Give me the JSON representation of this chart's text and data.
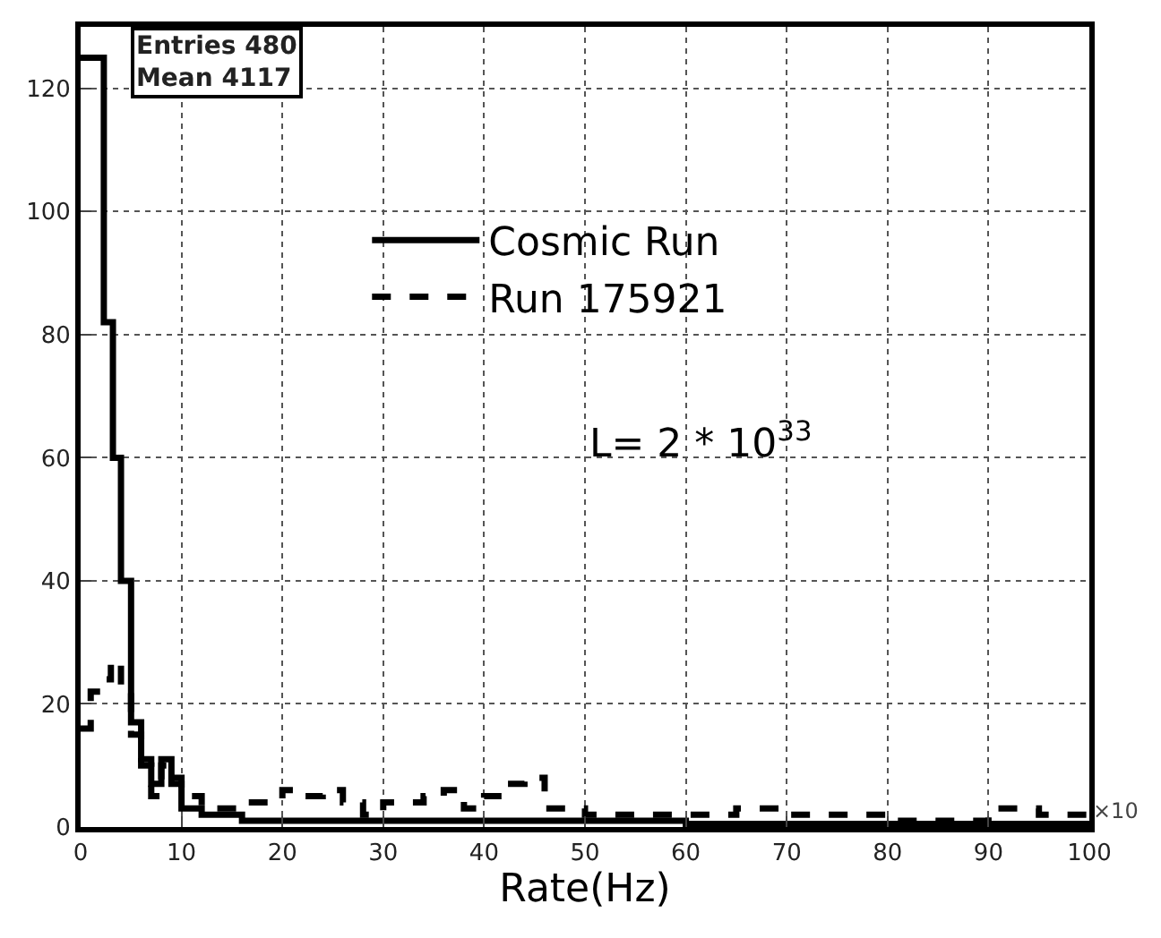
{
  "chart_data": {
    "type": "step",
    "xlabel": "Rate(Hz)",
    "xlim": [
      0,
      100
    ],
    "xticks": [
      0,
      10,
      20,
      30,
      40,
      50,
      60,
      70,
      80,
      90,
      100
    ],
    "ylim": [
      0,
      130
    ],
    "yticks": [
      0,
      20,
      40,
      60,
      80,
      100,
      120
    ],
    "grid": true,
    "legend": "top",
    "marker": "none",
    "annotations": [
      "Entries 480",
      "Mean 4117",
      "L= 2 * 10$^{33}$",
      "×10"
    ],
    "series": [
      {
        "name": "Cosmic Run",
        "color": "#000000",
        "line_style": "solid",
        "x": [
          0,
          2.3,
          3.2,
          4,
          5,
          6,
          7,
          8,
          9,
          10,
          12,
          14,
          16,
          20,
          25,
          30,
          40,
          50,
          60,
          70,
          80,
          90,
          100
        ],
        "values": [
          125,
          82,
          60,
          40,
          17,
          11,
          7,
          11,
          7,
          3,
          2,
          2,
          1,
          1,
          1,
          1,
          1,
          1,
          0.5,
          0.5,
          0.5,
          0.5,
          0.5
        ]
      },
      {
        "name": "Run 175921",
        "color": "#000000",
        "line_style": "dashed",
        "x": [
          0,
          1,
          2,
          3,
          4,
          5,
          6,
          7,
          8,
          9,
          10,
          12,
          14,
          16,
          18,
          20,
          22,
          24,
          26,
          28,
          30,
          32,
          34,
          36,
          38,
          40,
          42,
          44,
          46,
          50,
          55,
          60,
          65,
          70,
          75,
          80,
          85,
          90,
          95,
          100
        ],
        "values": [
          16,
          22,
          24,
          27,
          22,
          15,
          10,
          5,
          10,
          8,
          5,
          3,
          3,
          4,
          4,
          6,
          5,
          6,
          4,
          2,
          4,
          4,
          5,
          6,
          3,
          5,
          7,
          8,
          3,
          2,
          2,
          2,
          3,
          2,
          2,
          1,
          1,
          3,
          2,
          2
        ]
      }
    ]
  }
}
